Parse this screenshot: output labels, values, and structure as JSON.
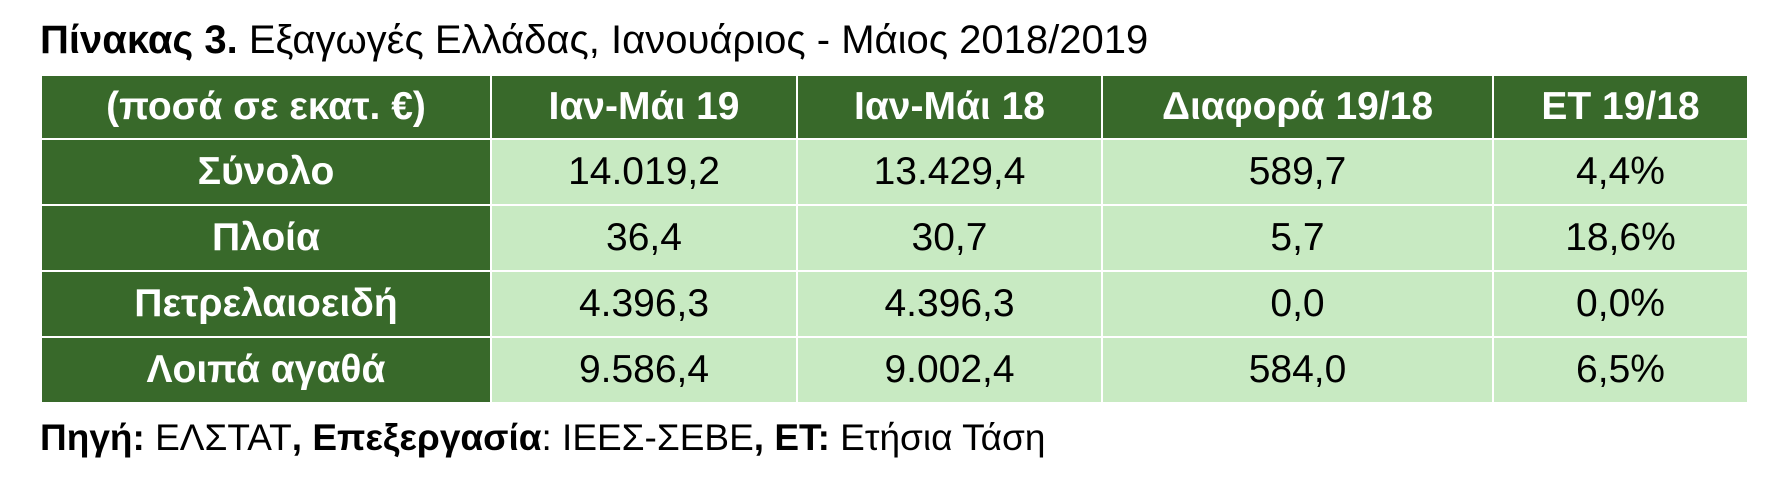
{
  "title": {
    "label": "Πίνακας 3.",
    "text": "Εξαγωγές Ελλάδας, Ιανουάριος - Μάιος 2018/2019"
  },
  "table": {
    "header": [
      "(ποσά σε εκατ. €)",
      "Ιαν-Μάι 19",
      "Ιαν-Μάι 18",
      "Διαφορά 19/18",
      "ΕΤ 19/18"
    ],
    "rows": [
      [
        "Σύνολο",
        "14.019,2",
        "13.429,4",
        "589,7",
        "4,4%"
      ],
      [
        "Πλοία",
        "36,4",
        "30,7",
        "5,7",
        "18,6%"
      ],
      [
        "Πετρελαιοειδή",
        "4.396,3",
        "4.396,3",
        "0,0",
        "0,0%"
      ],
      [
        "Λοιπά αγαθά",
        "9.586,4",
        "9.002,4",
        "584,0",
        "6,5%"
      ]
    ]
  },
  "footer": {
    "parts": [
      "Πηγή:",
      " ΕΛΣΤΑΤ",
      ", Επεξεργασία",
      ": ΙΕΕΣ-ΣΕΒΕ",
      ", ΕΤ:",
      " Ετήσια Τάση"
    ]
  }
}
